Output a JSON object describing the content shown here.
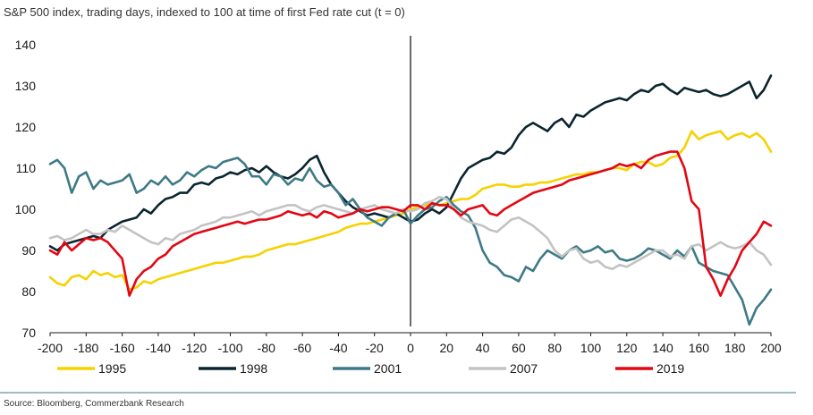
{
  "header": {
    "title": "S&P 500 index, trading days, indexed to 100 at time of first Fed rate cut (t = 0)"
  },
  "footer": {
    "source": "Source: Bloomberg, Commerzbank Research"
  },
  "chart_data": {
    "type": "line",
    "title": "S&P 500 index, trading days, indexed to 100 at time of first Fed rate cut (t = 0)",
    "xlabel": "",
    "ylabel": "",
    "xlim": [
      -200,
      200
    ],
    "ylim": [
      70,
      140
    ],
    "x_ticks": [
      -200,
      -180,
      -160,
      -140,
      -120,
      -100,
      -80,
      -60,
      -40,
      -20,
      0,
      20,
      40,
      60,
      80,
      100,
      120,
      140,
      160,
      180,
      200
    ],
    "y_ticks": [
      70,
      80,
      90,
      100,
      110,
      120,
      130,
      140
    ],
    "vertical_marker_x": 0,
    "grid": false,
    "legend_position": "bottom",
    "series": [
      {
        "name": "1995",
        "color": "#f5d200",
        "x": [
          -200,
          -196,
          -192,
          -188,
          -184,
          -180,
          -176,
          -172,
          -168,
          -164,
          -160,
          -156,
          -152,
          -148,
          -144,
          -140,
          -136,
          -132,
          -128,
          -124,
          -120,
          -116,
          -112,
          -108,
          -104,
          -100,
          -96,
          -92,
          -88,
          -84,
          -80,
          -76,
          -72,
          -68,
          -64,
          -60,
          -56,
          -52,
          -48,
          -44,
          -40,
          -36,
          -32,
          -28,
          -24,
          -20,
          -16,
          -12,
          -8,
          -4,
          0,
          4,
          8,
          12,
          16,
          20,
          24,
          28,
          32,
          36,
          40,
          44,
          48,
          52,
          56,
          60,
          64,
          68,
          72,
          76,
          80,
          84,
          88,
          92,
          96,
          100,
          104,
          108,
          112,
          116,
          120,
          124,
          128,
          132,
          136,
          140,
          144,
          148,
          152,
          156,
          160,
          164,
          168,
          172,
          176,
          180,
          184,
          188,
          192,
          196,
          200
        ],
        "values": [
          83.5,
          82.0,
          81.5,
          83.5,
          84.0,
          83.0,
          85.0,
          84.0,
          84.5,
          83.5,
          84.0,
          80.5,
          81.0,
          82.5,
          82.0,
          83.0,
          83.5,
          84.0,
          84.5,
          85.0,
          85.5,
          86.0,
          86.5,
          87.0,
          87.0,
          87.5,
          88.0,
          88.5,
          88.5,
          89.0,
          90.0,
          90.5,
          91.0,
          91.5,
          91.5,
          92.0,
          92.5,
          93.0,
          93.5,
          94.0,
          94.5,
          95.5,
          96.0,
          96.5,
          96.5,
          97.0,
          97.5,
          98.0,
          98.5,
          99.0,
          100.0,
          100.5,
          101.0,
          101.5,
          101.0,
          101.5,
          102.0,
          102.5,
          102.5,
          103.5,
          105.0,
          105.5,
          106.0,
          106.0,
          105.5,
          105.5,
          106.0,
          106.0,
          106.5,
          106.5,
          107.0,
          107.5,
          108.0,
          108.5,
          108.5,
          109.0,
          109.0,
          109.5,
          110.0,
          110.0,
          109.5,
          111.0,
          111.5,
          111.5,
          110.5,
          111.0,
          112.5,
          113.0,
          115.0,
          119.0,
          117.0,
          118.0,
          118.5,
          119.0,
          117.0,
          118.0,
          118.5,
          117.5,
          118.5,
          117.0,
          114.0
        ]
      },
      {
        "name": "1998",
        "color": "#0b2530",
        "x": [
          -200,
          -196,
          -192,
          -188,
          -184,
          -180,
          -176,
          -172,
          -168,
          -164,
          -160,
          -156,
          -152,
          -148,
          -144,
          -140,
          -136,
          -132,
          -128,
          -124,
          -120,
          -116,
          -112,
          -108,
          -104,
          -100,
          -96,
          -92,
          -88,
          -84,
          -80,
          -76,
          -72,
          -68,
          -64,
          -60,
          -56,
          -52,
          -48,
          -44,
          -40,
          -36,
          -32,
          -28,
          -24,
          -20,
          -16,
          -12,
          -8,
          -4,
          0,
          4,
          8,
          12,
          16,
          20,
          24,
          28,
          32,
          36,
          40,
          44,
          48,
          52,
          56,
          60,
          64,
          68,
          72,
          76,
          80,
          84,
          88,
          92,
          96,
          100,
          104,
          108,
          112,
          116,
          120,
          124,
          128,
          132,
          136,
          140,
          144,
          148,
          152,
          156,
          160,
          164,
          168,
          172,
          176,
          180,
          184,
          188,
          192,
          196,
          200
        ],
        "values": [
          91.0,
          90.0,
          91.5,
          92.0,
          92.5,
          93.0,
          93.5,
          93.0,
          95.0,
          96.0,
          97.0,
          97.5,
          98.0,
          100.0,
          99.0,
          101.0,
          102.5,
          103.0,
          104.0,
          104.0,
          106.0,
          106.5,
          106.0,
          107.5,
          108.0,
          109.0,
          108.5,
          109.5,
          110.0,
          109.0,
          110.5,
          109.0,
          108.0,
          107.5,
          108.5,
          110.0,
          112.0,
          113.0,
          109.0,
          106.0,
          104.0,
          102.0,
          100.5,
          99.5,
          98.5,
          99.0,
          98.5,
          98.0,
          99.0,
          98.0,
          97.0,
          97.5,
          99.0,
          100.0,
          99.0,
          100.5,
          104.0,
          107.5,
          110.0,
          111.0,
          112.0,
          112.5,
          114.0,
          113.5,
          115.0,
          118.0,
          120.0,
          121.0,
          120.0,
          119.0,
          121.0,
          122.0,
          120.0,
          123.0,
          122.5,
          124.0,
          125.0,
          126.0,
          126.5,
          127.0,
          126.5,
          128.0,
          129.0,
          128.5,
          130.0,
          130.5,
          129.0,
          128.0,
          129.5,
          129.0,
          128.5,
          129.0,
          128.0,
          127.5,
          128.0,
          129.0,
          130.0,
          131.0,
          127.0,
          129.0,
          132.5
        ]
      },
      {
        "name": "2001",
        "color": "#3e7a86",
        "x": [
          -200,
          -196,
          -192,
          -188,
          -184,
          -180,
          -176,
          -172,
          -168,
          -164,
          -160,
          -156,
          -152,
          -148,
          -144,
          -140,
          -136,
          -132,
          -128,
          -124,
          -120,
          -116,
          -112,
          -108,
          -104,
          -100,
          -96,
          -92,
          -88,
          -84,
          -80,
          -76,
          -72,
          -68,
          -64,
          -60,
          -56,
          -52,
          -48,
          -44,
          -40,
          -36,
          -32,
          -28,
          -24,
          -20,
          -16,
          -12,
          -8,
          -4,
          0,
          4,
          8,
          12,
          16,
          20,
          24,
          28,
          32,
          36,
          40,
          44,
          48,
          52,
          56,
          60,
          64,
          68,
          72,
          76,
          80,
          84,
          88,
          92,
          96,
          100,
          104,
          108,
          112,
          116,
          120,
          124,
          128,
          132,
          136,
          140,
          144,
          148,
          152,
          156,
          160,
          164,
          168,
          172,
          176,
          180,
          184,
          188,
          192,
          196,
          200
        ],
        "values": [
          111.0,
          112.0,
          110.0,
          104.0,
          108.0,
          109.0,
          105.0,
          107.0,
          106.0,
          106.5,
          107.0,
          108.5,
          104.0,
          105.0,
          107.0,
          106.0,
          108.0,
          106.0,
          107.0,
          109.0,
          108.0,
          109.5,
          110.5,
          110.0,
          111.5,
          112.0,
          112.5,
          111.0,
          108.0,
          108.0,
          106.0,
          108.5,
          108.0,
          106.0,
          107.5,
          107.0,
          110.0,
          107.0,
          105.5,
          106.0,
          104.0,
          101.0,
          102.5,
          100.0,
          98.0,
          97.0,
          96.0,
          98.0,
          99.0,
          100.0,
          96.5,
          98.5,
          100.0,
          100.5,
          102.0,
          103.0,
          101.0,
          99.5,
          98.5,
          95.5,
          90.0,
          87.0,
          86.0,
          84.0,
          83.5,
          82.5,
          86.0,
          85.0,
          88.0,
          90.0,
          89.0,
          88.0,
          90.0,
          91.0,
          89.5,
          90.0,
          91.0,
          89.5,
          90.0,
          88.0,
          87.5,
          88.0,
          89.0,
          90.5,
          90.0,
          89.0,
          88.0,
          90.0,
          88.5,
          91.0,
          87.0,
          86.0,
          85.0,
          84.5,
          84.0,
          81.0,
          78.0,
          72.0,
          76.0,
          78.0,
          80.5
        ]
      },
      {
        "name": "2007",
        "color": "#c3c3c3",
        "x": [
          -200,
          -196,
          -192,
          -188,
          -184,
          -180,
          -176,
          -172,
          -168,
          -164,
          -160,
          -156,
          -152,
          -148,
          -144,
          -140,
          -136,
          -132,
          -128,
          -124,
          -120,
          -116,
          -112,
          -108,
          -104,
          -100,
          -96,
          -92,
          -88,
          -84,
          -80,
          -76,
          -72,
          -68,
          -64,
          -60,
          -56,
          -52,
          -48,
          -44,
          -40,
          -36,
          -32,
          -28,
          -24,
          -20,
          -16,
          -12,
          -8,
          -4,
          0,
          4,
          8,
          12,
          16,
          20,
          24,
          28,
          32,
          36,
          40,
          44,
          48,
          52,
          56,
          60,
          64,
          68,
          72,
          76,
          80,
          84,
          88,
          92,
          96,
          100,
          104,
          108,
          112,
          116,
          120,
          124,
          128,
          132,
          136,
          140,
          144,
          148,
          152,
          156,
          160,
          164,
          168,
          172,
          176,
          180,
          184,
          188,
          192,
          196,
          200
        ],
        "values": [
          93.0,
          93.5,
          92.5,
          93.0,
          94.0,
          95.0,
          94.0,
          94.0,
          95.0,
          94.5,
          96.0,
          95.0,
          94.0,
          93.0,
          92.0,
          91.5,
          93.0,
          92.5,
          94.0,
          94.5,
          95.0,
          96.0,
          96.5,
          97.0,
          98.0,
          98.0,
          98.5,
          99.0,
          99.5,
          98.5,
          99.5,
          100.0,
          100.5,
          101.0,
          101.0,
          100.0,
          99.5,
          100.5,
          101.0,
          100.5,
          100.0,
          99.5,
          99.0,
          100.0,
          100.5,
          101.0,
          100.0,
          99.5,
          99.0,
          100.0,
          99.5,
          100.0,
          101.5,
          102.0,
          103.0,
          102.5,
          100.0,
          98.0,
          97.0,
          96.5,
          96.0,
          95.0,
          94.5,
          96.0,
          97.5,
          98.0,
          97.0,
          96.0,
          94.5,
          93.0,
          90.0,
          88.5,
          90.0,
          90.5,
          88.0,
          87.0,
          87.5,
          86.0,
          85.5,
          86.5,
          86.0,
          87.0,
          88.0,
          89.0,
          90.0,
          90.0,
          88.5,
          89.0,
          88.0,
          91.0,
          91.5,
          90.0,
          91.0,
          92.0,
          91.0,
          90.5,
          91.0,
          92.0,
          90.0,
          89.0,
          86.5
        ]
      },
      {
        "name": "2019",
        "color": "#e30613",
        "x": [
          -200,
          -196,
          -192,
          -188,
          -184,
          -180,
          -176,
          -172,
          -168,
          -164,
          -160,
          -156,
          -152,
          -148,
          -144,
          -140,
          -136,
          -132,
          -128,
          -124,
          -120,
          -116,
          -112,
          -108,
          -104,
          -100,
          -96,
          -92,
          -88,
          -84,
          -80,
          -76,
          -72,
          -68,
          -64,
          -60,
          -56,
          -52,
          -48,
          -44,
          -40,
          -36,
          -32,
          -28,
          -24,
          -20,
          -16,
          -12,
          -8,
          -4,
          0,
          4,
          8,
          12,
          16,
          20,
          24,
          28,
          32,
          36,
          40,
          44,
          48,
          52,
          56,
          60,
          64,
          68,
          72,
          76,
          80,
          84,
          88,
          92,
          96,
          100,
          104,
          108,
          112,
          116,
          120,
          124,
          128,
          132,
          136,
          140,
          144,
          148,
          152,
          156,
          160,
          164,
          168,
          172,
          176,
          180,
          184,
          188,
          192,
          196,
          200
        ],
        "values": [
          90.0,
          89.0,
          92.0,
          90.0,
          91.5,
          93.0,
          92.5,
          93.0,
          92.0,
          90.0,
          88.0,
          79.0,
          83.0,
          85.0,
          86.0,
          88.0,
          89.0,
          91.0,
          92.0,
          93.0,
          94.0,
          94.5,
          95.0,
          95.5,
          96.0,
          96.5,
          97.0,
          96.5,
          97.0,
          97.5,
          97.5,
          98.0,
          98.5,
          99.5,
          99.0,
          98.5,
          99.0,
          98.0,
          99.5,
          99.0,
          98.0,
          98.5,
          99.0,
          100.0,
          99.5,
          100.0,
          100.5,
          100.5,
          100.0,
          99.5,
          101.0,
          101.0,
          100.0,
          101.5,
          101.0,
          101.0,
          100.0,
          98.5,
          100.0,
          100.5,
          101.0,
          99.0,
          98.5,
          100.0,
          101.0,
          102.0,
          103.0,
          104.0,
          104.5,
          105.0,
          105.5,
          106.0,
          107.0,
          107.5,
          108.0,
          108.5,
          109.0,
          109.5,
          110.0,
          111.0,
          110.5,
          111.0,
          110.0,
          112.0,
          113.0,
          113.5,
          114.0,
          114.0,
          110.0,
          102.0,
          100.0,
          86.0,
          83.0,
          79.0,
          83.0,
          86.0,
          90.0,
          92.0,
          94.0,
          97.0,
          96.0
        ]
      }
    ]
  }
}
